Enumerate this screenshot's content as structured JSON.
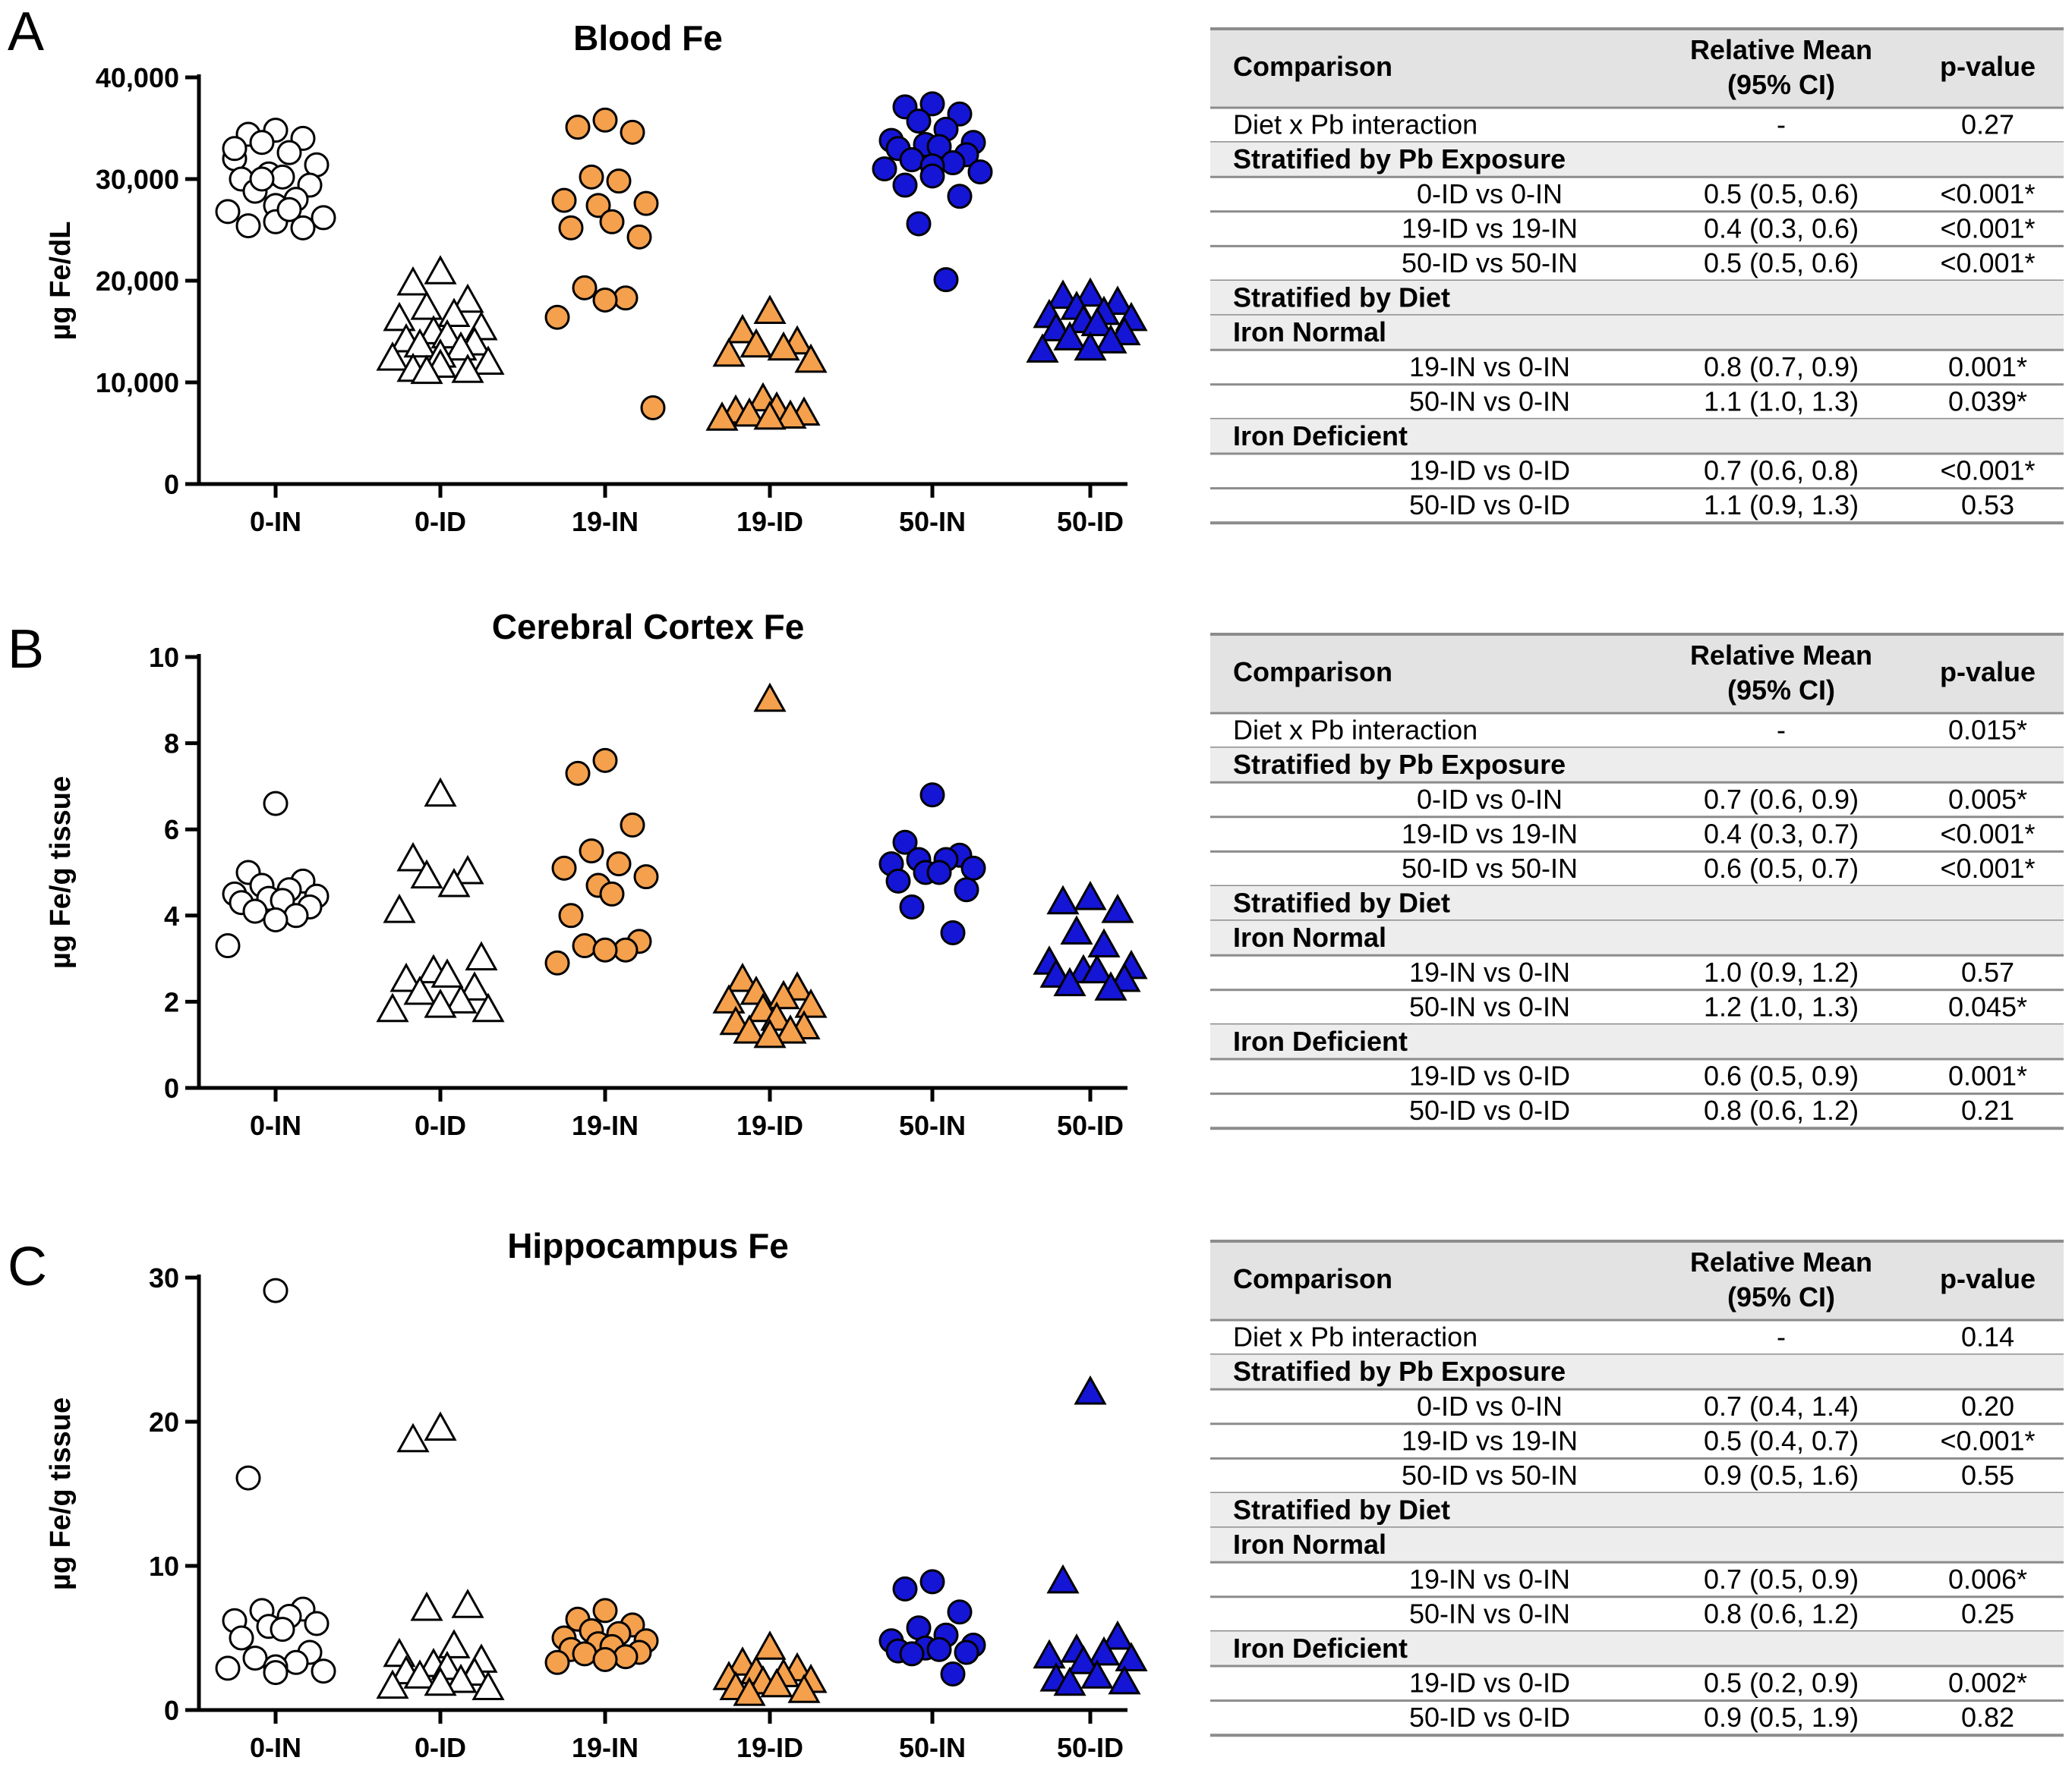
{
  "panel_letters": [
    "A",
    "B",
    "C"
  ],
  "colors": {
    "white_fill": "#ffffff",
    "orange_fill": "#f4a04c",
    "blue_fill": "#1515d6",
    "stroke": "#000000",
    "table_header_bg": "#e3e3e3",
    "table_section_bg": "#ededed",
    "table_line": "#8c8c8c"
  },
  "chart_data": [
    {
      "type": "scatter",
      "title": "Blood Fe",
      "xlabel": "",
      "ylabel": "µg Fe/dL",
      "ylim": [
        0,
        40000
      ],
      "yticks": [
        0,
        10000,
        20000,
        30000,
        40000
      ],
      "ytick_labels": [
        "0",
        "10,000",
        "20,000",
        "30,000",
        "40,000"
      ],
      "categories": [
        "0-IN",
        "0-ID",
        "19-IN",
        "19-ID",
        "50-IN",
        "50-ID"
      ],
      "markers": [
        "circle",
        "triangle",
        "circle",
        "triangle",
        "circle",
        "triangle"
      ],
      "fills": [
        "white",
        "white",
        "orange",
        "orange",
        "blue",
        "blue"
      ],
      "series": [
        {
          "name": "0-IN",
          "values": [
            34800,
            34400,
            34000,
            33600,
            32600,
            32000,
            31400,
            30500,
            30200,
            30000,
            29400,
            28800,
            28000,
            27400,
            26800,
            26200,
            25800,
            25400,
            25200,
            30000,
            27000,
            33000
          ]
        },
        {
          "name": "0-ID",
          "values": [
            20800,
            19700,
            18000,
            17300,
            16600,
            16200,
            15300,
            14900,
            14500,
            14100,
            13800,
            13600,
            13300,
            12600,
            12300,
            11900,
            11600,
            11200,
            11100,
            11000
          ]
        },
        {
          "name": "19-IN",
          "values": [
            35800,
            35100,
            34600,
            30200,
            29800,
            27900,
            27600,
            27400,
            25800,
            25200,
            24300,
            19300,
            18300,
            18100,
            16400,
            7500
          ]
        },
        {
          "name": "19-ID",
          "values": [
            16900,
            15000,
            13900,
            13600,
            13300,
            12700,
            12100,
            8300,
            7400,
            7100,
            6900,
            6800,
            6600,
            6500,
            6400
          ]
        },
        {
          "name": "50-IN",
          "values": [
            37400,
            37100,
            36400,
            35700,
            34900,
            33800,
            33600,
            33400,
            33200,
            33000,
            32400,
            31900,
            31600,
            31300,
            31000,
            30700,
            30300,
            29400,
            28300,
            25600,
            20100
          ]
        },
        {
          "name": "50-ID",
          "values": [
            18600,
            18400,
            17800,
            17300,
            16800,
            16500,
            16200,
            16000,
            15700,
            15200,
            14800,
            14300,
            14000,
            13300,
            13100
          ]
        }
      ]
    },
    {
      "type": "scatter",
      "title": "Cerebral Cortex Fe",
      "xlabel": "",
      "ylabel": "µg Fe/g tissue",
      "ylim": [
        0,
        10
      ],
      "yticks": [
        0,
        2,
        4,
        6,
        8,
        10
      ],
      "ytick_labels": [
        "0",
        "2",
        "4",
        "6",
        "8",
        "10"
      ],
      "categories": [
        "0-IN",
        "0-ID",
        "19-IN",
        "19-ID",
        "50-IN",
        "50-ID"
      ],
      "markers": [
        "circle",
        "triangle",
        "circle",
        "triangle",
        "circle",
        "triangle"
      ],
      "fills": [
        "white",
        "white",
        "orange",
        "orange",
        "blue",
        "blue"
      ],
      "series": [
        {
          "name": "0-IN",
          "values": [
            6.6,
            5.0,
            4.8,
            4.7,
            4.6,
            4.5,
            4.45,
            4.4,
            4.35,
            4.3,
            4.2,
            4.1,
            4.0,
            3.9,
            3.3
          ]
        },
        {
          "name": "0-ID",
          "values": [
            6.8,
            5.3,
            5.0,
            4.9,
            4.7,
            4.1,
            3.0,
            2.7,
            2.6,
            2.5,
            2.3,
            2.2,
            2.0,
            1.9,
            1.8,
            1.8
          ]
        },
        {
          "name": "19-IN",
          "values": [
            7.6,
            7.3,
            6.1,
            5.5,
            5.2,
            5.1,
            4.9,
            4.7,
            4.5,
            4.0,
            3.4,
            3.3,
            3.2,
            3.2,
            2.9
          ]
        },
        {
          "name": "19-ID",
          "values": [
            9.0,
            2.5,
            2.3,
            2.2,
            2.1,
            2.0,
            1.9,
            1.8,
            1.6,
            1.5,
            1.4,
            1.3,
            1.3,
            1.2
          ]
        },
        {
          "name": "50-IN",
          "values": [
            6.8,
            5.7,
            5.4,
            5.3,
            5.3,
            5.2,
            5.1,
            5.0,
            5.0,
            4.8,
            4.6,
            4.2,
            3.6
          ]
        },
        {
          "name": "50-ID",
          "values": [
            4.4,
            4.3,
            4.1,
            3.6,
            3.3,
            2.9,
            2.8,
            2.7,
            2.7,
            2.6,
            2.5,
            2.4,
            2.3
          ]
        }
      ]
    },
    {
      "type": "scatter",
      "title": "Hippocampus Fe",
      "xlabel": "",
      "ylabel": "µg Fe/g tissue",
      "ylim": [
        0,
        30
      ],
      "yticks": [
        0,
        10,
        20,
        30
      ],
      "ytick_labels": [
        "0",
        "10",
        "20",
        "30"
      ],
      "categories": [
        "0-IN",
        "0-ID",
        "19-IN",
        "19-ID",
        "50-IN",
        "50-ID"
      ],
      "markers": [
        "circle",
        "triangle",
        "circle",
        "triangle",
        "circle",
        "triangle"
      ],
      "fills": [
        "white",
        "white",
        "orange",
        "orange",
        "blue",
        "blue"
      ],
      "series": [
        {
          "name": "0-IN",
          "values": [
            29.1,
            16.1,
            7.0,
            6.9,
            6.5,
            6.2,
            6.0,
            5.8,
            5.6,
            5.0,
            4.0,
            3.6,
            3.3,
            3.0,
            2.9,
            2.7,
            2.6
          ]
        },
        {
          "name": "0-ID",
          "values": [
            19.5,
            18.7,
            7.2,
            7.0,
            4.4,
            3.8,
            3.4,
            3.1,
            2.9,
            2.6,
            2.5,
            2.3,
            2.0,
            1.8,
            1.6,
            1.5
          ]
        },
        {
          "name": "19-IN",
          "values": [
            6.9,
            6.3,
            5.9,
            5.5,
            5.3,
            5.0,
            4.8,
            4.6,
            4.4,
            4.2,
            4.0,
            3.9,
            3.7,
            3.5,
            3.3
          ]
        },
        {
          "name": "19-ID",
          "values": [
            4.3,
            3.2,
            2.8,
            2.6,
            2.4,
            2.2,
            2.0,
            1.9,
            1.7,
            1.5,
            1.3,
            1.1
          ]
        },
        {
          "name": "50-IN",
          "values": [
            8.9,
            8.4,
            6.8,
            5.7,
            5.2,
            4.8,
            4.5,
            4.3,
            4.2,
            4.1,
            4.0,
            3.9,
            2.5
          ]
        },
        {
          "name": "50-ID",
          "values": [
            22.0,
            8.9,
            5.0,
            4.1,
            3.9,
            3.7,
            3.5,
            3.3,
            2.3,
            2.1,
            1.9,
            1.8
          ]
        }
      ]
    }
  ],
  "tables": [
    {
      "header": {
        "comparison": "Comparison",
        "mean_line1": "Relative Mean",
        "mean_line2": "(95% CI)",
        "pvalue": "p-value"
      },
      "rows": [
        {
          "kind": "data",
          "label": "Diet x Pb interaction",
          "align": "left",
          "mean": "-",
          "p": "0.27"
        },
        {
          "kind": "section",
          "label": "Stratified by Pb Exposure"
        },
        {
          "kind": "data",
          "label": "0-ID vs 0-IN",
          "align": "center",
          "mean": "0.5 (0.5, 0.6)",
          "p": "<0.001*"
        },
        {
          "kind": "data",
          "label": "19-ID vs 19-IN",
          "align": "center",
          "mean": "0.4 (0.3, 0.6)",
          "p": "<0.001*"
        },
        {
          "kind": "data",
          "label": "50-ID vs 50-IN",
          "align": "center",
          "mean": "0.5 (0.5, 0.6)",
          "p": "<0.001*"
        },
        {
          "kind": "section",
          "label": "Stratified by Diet"
        },
        {
          "kind": "section",
          "label": "Iron Normal"
        },
        {
          "kind": "data",
          "label": "19-IN vs 0-IN",
          "align": "center",
          "mean": "0.8 (0.7, 0.9)",
          "p": "0.001*"
        },
        {
          "kind": "data",
          "label": "50-IN vs 0-IN",
          "align": "center",
          "mean": "1.1 (1.0, 1.3)",
          "p": "0.039*"
        },
        {
          "kind": "section",
          "label": "Iron Deficient"
        },
        {
          "kind": "data",
          "label": "19-ID vs 0-ID",
          "align": "center",
          "mean": "0.7 (0.6, 0.8)",
          "p": "<0.001*"
        },
        {
          "kind": "data",
          "label": "50-ID vs 0-ID",
          "align": "center",
          "mean": "1.1 (0.9, 1.3)",
          "p": "0.53"
        }
      ]
    },
    {
      "header": {
        "comparison": "Comparison",
        "mean_line1": "Relative Mean",
        "mean_line2": "(95% CI)",
        "pvalue": "p-value"
      },
      "rows": [
        {
          "kind": "data",
          "label": "Diet x Pb interaction",
          "align": "left",
          "mean": "-",
          "p": "0.015*"
        },
        {
          "kind": "section",
          "label": "Stratified by Pb Exposure"
        },
        {
          "kind": "data",
          "label": "0-ID vs 0-IN",
          "align": "center",
          "mean": "0.7 (0.6, 0.9)",
          "p": "0.005*"
        },
        {
          "kind": "data",
          "label": "19-ID vs 19-IN",
          "align": "center",
          "mean": "0.4 (0.3, 0.7)",
          "p": "<0.001*"
        },
        {
          "kind": "data",
          "label": "50-ID vs 50-IN",
          "align": "center",
          "mean": "0.6 (0.5, 0.7)",
          "p": "<0.001*"
        },
        {
          "kind": "section",
          "label": "Stratified by Diet"
        },
        {
          "kind": "section",
          "label": "Iron Normal"
        },
        {
          "kind": "data",
          "label": "19-IN vs 0-IN",
          "align": "center",
          "mean": "1.0 (0.9, 1.2)",
          "p": "0.57"
        },
        {
          "kind": "data",
          "label": "50-IN vs 0-IN",
          "align": "center",
          "mean": "1.2 (1.0, 1.3)",
          "p": "0.045*"
        },
        {
          "kind": "section",
          "label": "Iron Deficient"
        },
        {
          "kind": "data",
          "label": "19-ID vs 0-ID",
          "align": "center",
          "mean": "0.6 (0.5, 0.9)",
          "p": "0.001*"
        },
        {
          "kind": "data",
          "label": "50-ID vs 0-ID",
          "align": "center",
          "mean": "0.8 (0.6, 1.2)",
          "p": "0.21"
        }
      ]
    },
    {
      "header": {
        "comparison": "Comparison",
        "mean_line1": "Relative Mean",
        "mean_line2": "(95% CI)",
        "pvalue": "p-value"
      },
      "rows": [
        {
          "kind": "data",
          "label": "Diet x Pb interaction",
          "align": "left",
          "mean": "-",
          "p": "0.14"
        },
        {
          "kind": "section",
          "label": "Stratified by Pb Exposure"
        },
        {
          "kind": "data",
          "label": "0-ID vs 0-IN",
          "align": "center",
          "mean": "0.7 (0.4, 1.4)",
          "p": "0.20"
        },
        {
          "kind": "data",
          "label": "19-ID vs 19-IN",
          "align": "center",
          "mean": "0.5 (0.4, 0.7)",
          "p": "<0.001*"
        },
        {
          "kind": "data",
          "label": "50-ID vs 50-IN",
          "align": "center",
          "mean": "0.9 (0.5, 1.6)",
          "p": "0.55"
        },
        {
          "kind": "section",
          "label": "Stratified by Diet"
        },
        {
          "kind": "section",
          "label": "Iron Normal"
        },
        {
          "kind": "data",
          "label": "19-IN vs 0-IN",
          "align": "center",
          "mean": "0.7 (0.5, 0.9)",
          "p": "0.006*"
        },
        {
          "kind": "data",
          "label": "50-IN vs 0-IN",
          "align": "center",
          "mean": "0.8 (0.6, 1.2)",
          "p": "0.25"
        },
        {
          "kind": "section",
          "label": "Iron Deficient"
        },
        {
          "kind": "data",
          "label": "19-ID vs 0-ID",
          "align": "center",
          "mean": "0.5 (0.2, 0.9)",
          "p": "0.002*"
        },
        {
          "kind": "data",
          "label": "50-ID vs 0-ID",
          "align": "center",
          "mean": "0.9 (0.5, 1.9)",
          "p": "0.82"
        }
      ]
    }
  ]
}
